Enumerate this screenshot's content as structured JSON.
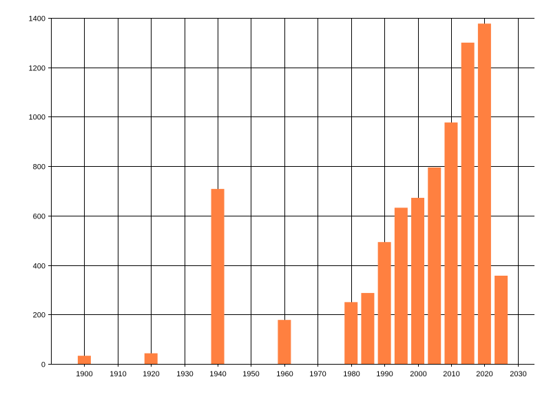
{
  "chart_data": {
    "type": "bar",
    "title": "",
    "xlabel": "",
    "ylabel": "",
    "x": [
      1900,
      1920,
      1940,
      1960,
      1980,
      1985,
      1990,
      1995,
      2000,
      2005,
      2010,
      2015,
      2020,
      2025
    ],
    "values": [
      33,
      43,
      708,
      178,
      250,
      287,
      493,
      632,
      672,
      795,
      977,
      1300,
      1377,
      357
    ],
    "xlim": [
      1890,
      2035
    ],
    "ylim": [
      0,
      1400
    ],
    "x_ticks": [
      1900,
      1910,
      1920,
      1930,
      1940,
      1950,
      1960,
      1970,
      1980,
      1990,
      2000,
      2010,
      2020,
      2030
    ],
    "y_ticks": [
      0,
      200,
      400,
      600,
      800,
      1000,
      1200,
      1400
    ],
    "grid": true,
    "legend": "none",
    "colors": {
      "bar": "#ff8040",
      "grid": "#000000",
      "axis": "#000000",
      "background": "#ffffff"
    }
  }
}
